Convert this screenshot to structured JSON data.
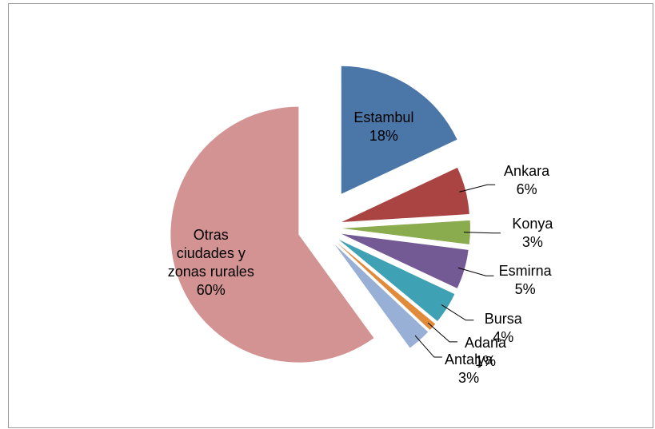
{
  "chart_data": {
    "type": "pie",
    "categories": [
      "Estambul",
      "Ankara",
      "Konya",
      "Esmirna",
      "Bursa",
      "Adana",
      "Antalya",
      "Otras ciudades y zonas rurales"
    ],
    "values": [
      18,
      6,
      3,
      5,
      4,
      1,
      3,
      60
    ],
    "value_labels": [
      "18%",
      "6%",
      "3%",
      "5%",
      "4%",
      "1%",
      "3%",
      "60%"
    ],
    "colors": [
      "#4a76a8",
      "#a94442",
      "#8bab4f",
      "#735a94",
      "#3fa1b4",
      "#e08a3c",
      "#98afd6",
      "#d39392"
    ]
  }
}
